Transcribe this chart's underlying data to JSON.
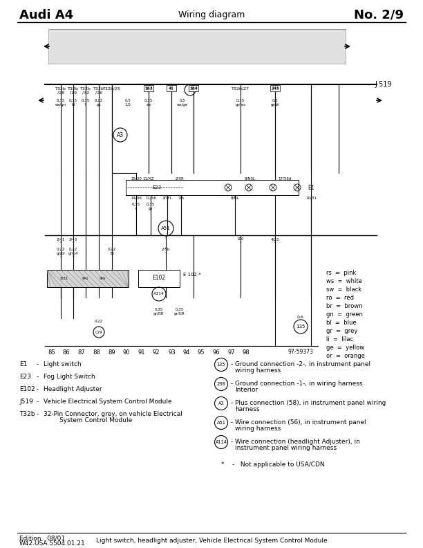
{
  "title_left": "Audi A4",
  "title_center": "Wiring diagram",
  "title_right": "No. 2/9",
  "footer_left1": "Edition   08/01",
  "footer_left2": "W42.USA.5504.01.21",
  "footer_center": "Light switch, headlight adjuster, Vehicle Electrical System Control Module",
  "bg_color": "#ffffff",
  "color_legend": [
    [
      "rs",
      "pink"
    ],
    [
      "ws",
      "white"
    ],
    [
      "sw",
      "black"
    ],
    [
      "ro",
      "red"
    ],
    [
      "br",
      "brown"
    ],
    [
      "gn",
      "green"
    ],
    [
      "bl",
      "blue"
    ],
    [
      "gr",
      "grey"
    ],
    [
      "li",
      "lilac"
    ],
    [
      "ge",
      "yellow"
    ],
    [
      "or",
      "orange"
    ]
  ],
  "left_legend": [
    [
      "E1",
      "Light switch"
    ],
    [
      "E23",
      "Fog Light Switch"
    ],
    [
      "E102",
      "Headlight Adjuster"
    ],
    [
      "J519",
      "Vehicle Electrical System Control Module"
    ],
    [
      "T32b",
      "32-Pin Connector, grey, on vehicle Electrical",
      "        System Control Module"
    ]
  ],
  "right_legend": [
    [
      "135",
      "Ground connection -2-, in instrument panel",
      "wiring harness"
    ],
    [
      "238",
      "Ground connection -1-, in wiring harness",
      "Interior"
    ],
    [
      "A3",
      "Plus connection (58), in instrument panel wiring",
      "harness"
    ],
    [
      "A51",
      "Wire connection (56), in instrument panel",
      "wiring harness"
    ],
    [
      "A114",
      "Wire connection (headlight Adjuster), in",
      "instrument panel wiring harness"
    ]
  ],
  "star_note": "*    -   Not applicable to USA/CDN",
  "bottom_nums": [
    "85",
    "86",
    "87",
    "88",
    "89",
    "90",
    "91",
    "92",
    "93",
    "94",
    "95",
    "96",
    "97",
    "98"
  ]
}
